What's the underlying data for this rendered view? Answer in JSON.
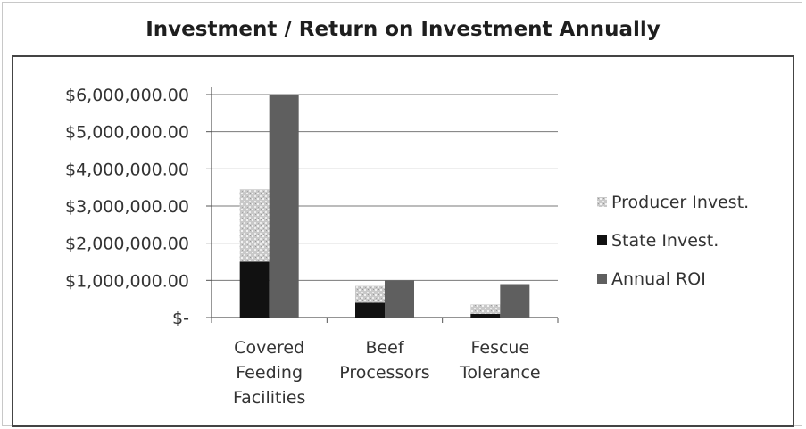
{
  "chart_data": {
    "type": "bar",
    "title": "Investment / Return on Investment Annually",
    "categories": [
      [
        "Covered",
        "Feeding",
        "Facilities"
      ],
      [
        "Beef",
        "Processors"
      ],
      [
        "Fescue",
        "Tolerance"
      ]
    ],
    "stacked_groups": [
      [
        "Producer Invest.",
        "State Invest."
      ],
      [
        "Annual ROI"
      ]
    ],
    "series": [
      {
        "name": "Producer Invest.",
        "values": [
          1950000,
          450000,
          250000
        ],
        "color": "#bdbdbd"
      },
      {
        "name": "State Invest.",
        "values": [
          1500000,
          400000,
          100000
        ],
        "color": "#111111"
      },
      {
        "name": "Annual ROI",
        "values": [
          6000000,
          1000000,
          900000
        ],
        "color": "#5f5f5f"
      }
    ],
    "legend_order": [
      "Producer Invest.",
      "State Invest.",
      "Annual ROI"
    ],
    "ylim": [
      0,
      6000000
    ],
    "yticks": [
      0,
      1000000,
      2000000,
      3000000,
      4000000,
      5000000,
      6000000
    ],
    "ytick_labels": [
      "$-",
      "$1,000,000.00",
      "$2,000,000.00",
      "$3,000,000.00",
      "$4,000,000.00",
      "$5,000,000.00",
      "$6,000,000.00"
    ],
    "xlabel": "",
    "ylabel": "",
    "grid": true,
    "legend_position": "right"
  }
}
